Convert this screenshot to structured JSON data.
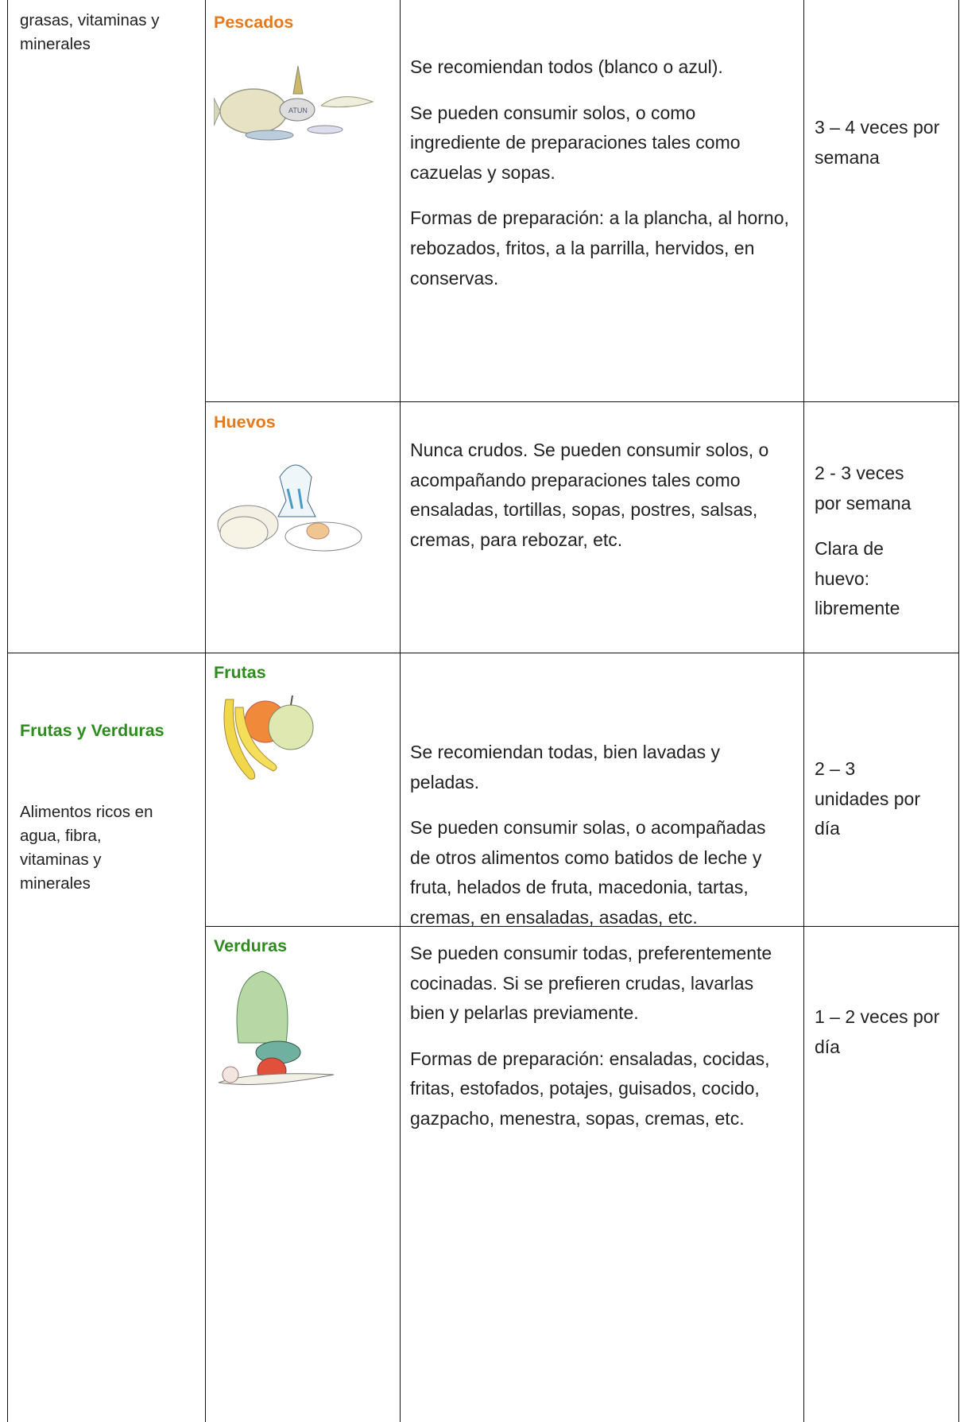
{
  "table": {
    "groups": [
      {
        "description": "grasas, vitaminas y minerales",
        "items": [
          {
            "name": "Pescados",
            "paragraphs": [
              "Se recomiendan todos (blanco o azul).",
              "Se pueden consumir solos, o como ingrediente de preparaciones tales como cazuelas y sopas.",
              "Formas de preparación: a la plancha, al horno, rebozados, fritos, a la parrilla, hervidos, en conservas."
            ],
            "frequency": [
              "3 – 4 veces por semana"
            ]
          },
          {
            "name": "Huevos",
            "paragraphs": [
              "Nunca crudos. Se pueden consumir solos, o acompañando preparaciones tales como ensaladas, tortillas, sopas, postres, salsas, cremas, para rebozar, etc."
            ],
            "frequency": [
              "2 - 3 veces por semana",
              "Clara de huevo: libremente"
            ]
          }
        ]
      },
      {
        "title": "Frutas y Verduras",
        "description": "Alimentos ricos en agua, fibra, vitaminas y minerales",
        "items": [
          {
            "name": "Frutas",
            "paragraphs": [
              "Se recomiendan todas, bien lavadas y peladas.",
              "Se pueden consumir solas, o acompañadas de otros alimentos como batidos de leche y fruta, helados de fruta, macedonia, tartas, cremas, en ensaladas, asadas, etc."
            ],
            "frequency": [
              "2 – 3 unidades por día"
            ]
          },
          {
            "name": "Verduras",
            "paragraphs": [
              "Se pueden consumir todas, preferentemente cocinadas. Si se prefieren crudas, lavarlas bien y pelarlas previamente.",
              "Formas de preparación: ensaladas, cocidas, fritas, estofados, potajes, guisados, cocido, gazpacho, menestra, sopas, cremas, etc."
            ],
            "frequency": [
              "1 – 2 veces por día"
            ]
          }
        ]
      }
    ]
  }
}
